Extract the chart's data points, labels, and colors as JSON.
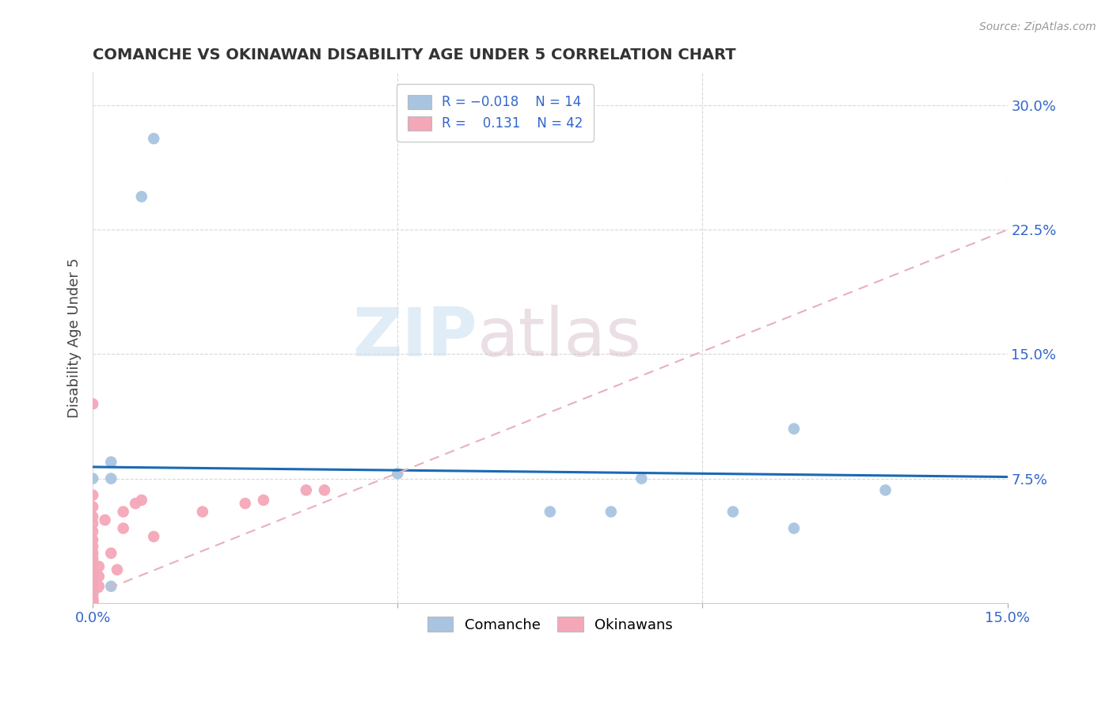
{
  "title": "COMANCHE VS OKINAWAN DISABILITY AGE UNDER 5 CORRELATION CHART",
  "source": "Source: ZipAtlas.com",
  "ylabel": "Disability Age Under 5",
  "xlim": [
    0.0,
    0.15
  ],
  "ylim": [
    0.0,
    0.32
  ],
  "ytick_labels_right": [
    "7.5%",
    "15.0%",
    "22.5%",
    "30.0%"
  ],
  "ytick_vals_right": [
    0.075,
    0.15,
    0.225,
    0.3
  ],
  "comanche_color": "#a8c4e0",
  "okinawan_color": "#f4a7b9",
  "comanche_line_color": "#1a6ab5",
  "okinawan_line_color": "#e8b0bb",
  "watermark_zip": "ZIP",
  "watermark_atlas": "atlas",
  "background_color": "#ffffff",
  "grid_color": "#d8d8d8",
  "comanche_x": [
    0.01,
    0.008,
    0.003,
    0.003,
    0.003,
    0.0,
    0.05,
    0.075,
    0.085,
    0.09,
    0.105,
    0.115,
    0.13,
    0.115
  ],
  "comanche_y": [
    0.28,
    0.245,
    0.085,
    0.075,
    0.01,
    0.075,
    0.078,
    0.055,
    0.055,
    0.075,
    0.055,
    0.045,
    0.068,
    0.105
  ],
  "okinawan_x": [
    0.0,
    0.0,
    0.0,
    0.0,
    0.0,
    0.0,
    0.0,
    0.0,
    0.0,
    0.0,
    0.0,
    0.0,
    0.0,
    0.0,
    0.0,
    0.0,
    0.0,
    0.0,
    0.0,
    0.0,
    0.0,
    0.0,
    0.0,
    0.0,
    0.0,
    0.0,
    0.001,
    0.001,
    0.001,
    0.002,
    0.003,
    0.004,
    0.005,
    0.005,
    0.007,
    0.008,
    0.01,
    0.018,
    0.025,
    0.028,
    0.035,
    0.038
  ],
  "okinawan_y": [
    0.12,
    0.065,
    0.058,
    0.052,
    0.048,
    0.043,
    0.038,
    0.034,
    0.03,
    0.027,
    0.024,
    0.021,
    0.018,
    0.015,
    0.013,
    0.01,
    0.008,
    0.006,
    0.005,
    0.003,
    0.002,
    0.001,
    0.001,
    0.0,
    0.0,
    0.0,
    0.022,
    0.016,
    0.01,
    0.05,
    0.03,
    0.02,
    0.055,
    0.045,
    0.06,
    0.062,
    0.04,
    0.055,
    0.06,
    0.062,
    0.068,
    0.068
  ],
  "comanche_line_x": [
    0.0,
    0.15
  ],
  "comanche_line_y": [
    0.082,
    0.076
  ],
  "okinawan_line_x": [
    0.0,
    0.15
  ],
  "okinawan_line_y": [
    0.005,
    0.225
  ]
}
